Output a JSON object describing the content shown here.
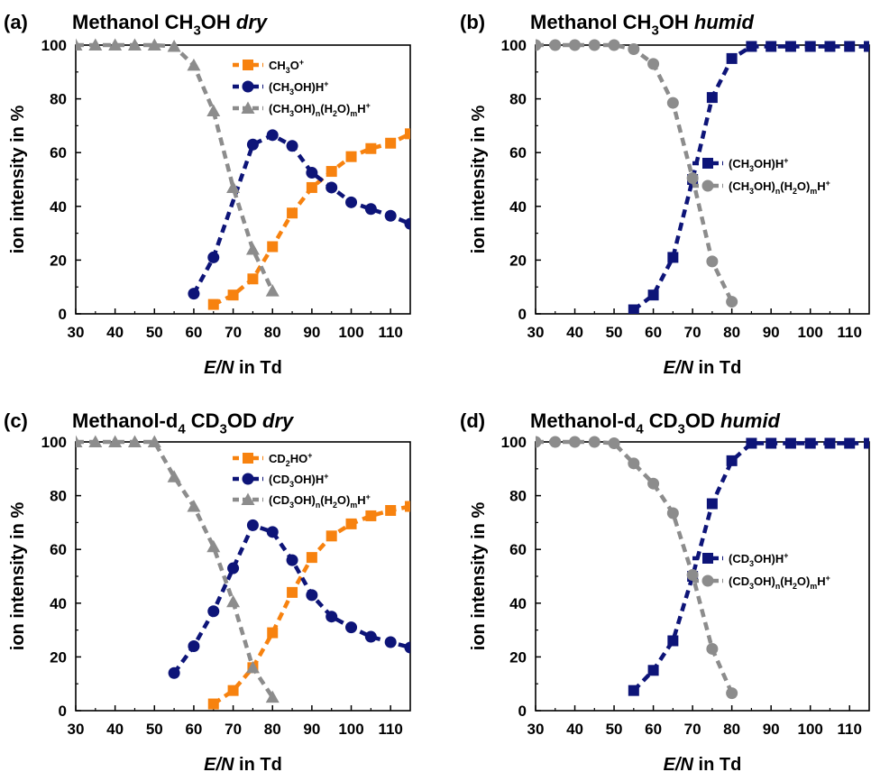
{
  "panels": [
    {
      "label": "(a)",
      "title": [
        {
          "t": "Methanol CH"
        },
        {
          "t": "3",
          "sub": true
        },
        {
          "t": "OH "
        },
        {
          "t": "dry",
          "it": true
        }
      ],
      "xlabel": [
        {
          "t": "E/N",
          "it": true
        },
        {
          "t": " in Td"
        }
      ],
      "ylabel": "ion intensity in %",
      "legend_pos": "top-right"
    },
    {
      "label": "(b)",
      "title": [
        {
          "t": "Methanol CH"
        },
        {
          "t": "3",
          "sub": true
        },
        {
          "t": "OH "
        },
        {
          "t": "humid",
          "it": true
        }
      ],
      "xlabel": [
        {
          "t": "E/N",
          "it": true
        },
        {
          "t": " in Td"
        }
      ],
      "ylabel": "ion intensity in %",
      "legend_pos": "middle-right"
    },
    {
      "label": "(c)",
      "title": [
        {
          "t": "Methanol-d"
        },
        {
          "t": "4",
          "sub": true
        },
        {
          "t": " CD"
        },
        {
          "t": "3",
          "sub": true
        },
        {
          "t": "OD "
        },
        {
          "t": "dry",
          "it": true
        }
      ],
      "xlabel": [
        {
          "t": "E/N",
          "it": true
        },
        {
          "t": " in Td"
        }
      ],
      "ylabel": "ion intensity in %",
      "legend_pos": "top-right"
    },
    {
      "label": "(d)",
      "title": [
        {
          "t": "Methanol-d"
        },
        {
          "t": "4",
          "sub": true
        },
        {
          "t": " CD"
        },
        {
          "t": "3",
          "sub": true
        },
        {
          "t": "OD "
        },
        {
          "t": "humid",
          "it": true
        }
      ],
      "xlabel": [
        {
          "t": "E/N",
          "it": true
        },
        {
          "t": " in Td"
        }
      ],
      "ylabel": "ion intensity in %",
      "legend_pos": "middle-right"
    }
  ],
  "colors": {
    "orange": "#f7820f",
    "navy": "#0d1478",
    "gray": "#8c8c8c"
  },
  "chart_data": [
    {
      "type": "line",
      "xlim": [
        30,
        115
      ],
      "ylim": [
        0,
        100
      ],
      "xticks": [
        30,
        40,
        50,
        60,
        70,
        80,
        90,
        100,
        110
      ],
      "yticks": [
        0,
        20,
        40,
        60,
        80,
        100
      ],
      "series": [
        {
          "name": [
            {
              "t": "CH"
            },
            {
              "t": "3",
              "sub": true
            },
            {
              "t": "O"
            },
            {
              "t": "+",
              "sup": true
            }
          ],
          "color": "orange",
          "marker": "square",
          "x": [
            65,
            70,
            75,
            80,
            85,
            90,
            95,
            100,
            105,
            110,
            115
          ],
          "y": [
            3.5,
            7,
            13,
            25,
            37.5,
            47,
            53,
            58.5,
            61.5,
            63.5,
            67
          ]
        },
        {
          "name": [
            {
              "t": "(CH"
            },
            {
              "t": "3",
              "sub": true
            },
            {
              "t": "OH)H"
            },
            {
              "t": "+",
              "sup": true
            }
          ],
          "color": "navy",
          "marker": "circle",
          "x": [
            60,
            65,
            75,
            80,
            85,
            90,
            95,
            100,
            105,
            110,
            115
          ],
          "y": [
            7.5,
            21,
            63,
            66.5,
            62.5,
            52.5,
            47,
            41.5,
            39,
            36.5,
            33.5
          ]
        },
        {
          "name": [
            {
              "t": "(CH"
            },
            {
              "t": "3",
              "sub": true
            },
            {
              "t": "OH)"
            },
            {
              "t": "n",
              "sub": true
            },
            {
              "t": "(H"
            },
            {
              "t": "2",
              "sub": true
            },
            {
              "t": "O)"
            },
            {
              "t": "m",
              "sub": true
            },
            {
              "t": "H"
            },
            {
              "t": "+",
              "sup": true
            }
          ],
          "color": "gray",
          "marker": "triangle",
          "x": [
            30,
            35,
            40,
            45,
            50,
            55,
            60,
            65,
            70,
            75,
            80
          ],
          "y": [
            100,
            100,
            100,
            100,
            100,
            99.5,
            92.5,
            75.5,
            47,
            24,
            8.5
          ]
        }
      ]
    },
    {
      "type": "line",
      "xlim": [
        30,
        115
      ],
      "ylim": [
        0,
        100
      ],
      "xticks": [
        30,
        40,
        50,
        60,
        70,
        80,
        90,
        100,
        110
      ],
      "yticks": [
        0,
        20,
        40,
        60,
        80,
        100
      ],
      "series": [
        {
          "name": [
            {
              "t": "(CH"
            },
            {
              "t": "3",
              "sub": true
            },
            {
              "t": "OH)H"
            },
            {
              "t": "+",
              "sup": true
            }
          ],
          "color": "navy",
          "marker": "square",
          "x": [
            55,
            60,
            65,
            70,
            75,
            80,
            85,
            90,
            95,
            100,
            105,
            110,
            115
          ],
          "y": [
            1.5,
            7,
            21,
            50,
            80.5,
            95,
            99.5,
            99.5,
            99.5,
            99.5,
            99.5,
            99.5,
            99.5
          ]
        },
        {
          "name": [
            {
              "t": "(CH"
            },
            {
              "t": "3",
              "sub": true
            },
            {
              "t": "OH)"
            },
            {
              "t": "n",
              "sub": true
            },
            {
              "t": "(H"
            },
            {
              "t": "2",
              "sub": true
            },
            {
              "t": "O)"
            },
            {
              "t": "m",
              "sub": true
            },
            {
              "t": "H"
            },
            {
              "t": "+",
              "sup": true
            }
          ],
          "color": "gray",
          "marker": "circle",
          "x": [
            30,
            35,
            40,
            45,
            50,
            55,
            60,
            65,
            70,
            75,
            80
          ],
          "y": [
            100,
            100,
            100,
            100,
            100,
            98.5,
            93,
            78.5,
            50.5,
            19.5,
            4.5
          ]
        }
      ]
    },
    {
      "type": "line",
      "xlim": [
        30,
        115
      ],
      "ylim": [
        0,
        100
      ],
      "xticks": [
        30,
        40,
        50,
        60,
        70,
        80,
        90,
        100,
        110
      ],
      "yticks": [
        0,
        20,
        40,
        60,
        80,
        100
      ],
      "series": [
        {
          "name": [
            {
              "t": "CD"
            },
            {
              "t": "2",
              "sub": true
            },
            {
              "t": "HO"
            },
            {
              "t": "+",
              "sup": true
            }
          ],
          "color": "orange",
          "marker": "square",
          "x": [
            65,
            70,
            75,
            80,
            85,
            90,
            95,
            100,
            105,
            110,
            115
          ],
          "y": [
            2.5,
            7.5,
            16,
            29,
            44,
            57,
            65,
            69.5,
            72.5,
            74.5,
            76
          ]
        },
        {
          "name": [
            {
              "t": "(CD"
            },
            {
              "t": "3",
              "sub": true
            },
            {
              "t": "OH)H"
            },
            {
              "t": "+",
              "sup": true
            }
          ],
          "color": "navy",
          "marker": "circle",
          "x": [
            55,
            60,
            65,
            70,
            75,
            80,
            85,
            90,
            95,
            100,
            105,
            110,
            115
          ],
          "y": [
            14,
            24,
            37,
            53,
            69,
            66.5,
            56,
            43,
            35,
            31,
            27.5,
            25.5,
            23.5
          ]
        },
        {
          "name": [
            {
              "t": "(CD"
            },
            {
              "t": "3",
              "sub": true
            },
            {
              "t": "OH)"
            },
            {
              "t": "n",
              "sub": true
            },
            {
              "t": "(H"
            },
            {
              "t": "2",
              "sub": true
            },
            {
              "t": "O)"
            },
            {
              "t": "m",
              "sub": true
            },
            {
              "t": "H"
            },
            {
              "t": "+",
              "sup": true
            }
          ],
          "color": "gray",
          "marker": "triangle",
          "x": [
            30,
            35,
            40,
            45,
            50,
            55,
            60,
            65,
            70,
            75,
            80
          ],
          "y": [
            100,
            100,
            100,
            100,
            100,
            87,
            76,
            61,
            40.5,
            16,
            5
          ]
        }
      ]
    },
    {
      "type": "line",
      "xlim": [
        30,
        115
      ],
      "ylim": [
        0,
        100
      ],
      "xticks": [
        30,
        40,
        50,
        60,
        70,
        80,
        90,
        100,
        110
      ],
      "yticks": [
        0,
        20,
        40,
        60,
        80,
        100
      ],
      "series": [
        {
          "name": [
            {
              "t": "(CD"
            },
            {
              "t": "3",
              "sub": true
            },
            {
              "t": "OH)H"
            },
            {
              "t": "+",
              "sup": true
            }
          ],
          "color": "navy",
          "marker": "square",
          "x": [
            55,
            60,
            65,
            70,
            75,
            80,
            85,
            90,
            95,
            100,
            105,
            110,
            115
          ],
          "y": [
            7.5,
            15,
            26,
            50,
            77,
            93,
            99.5,
            99.5,
            99.5,
            99.5,
            99.5,
            99.5,
            99.5
          ]
        },
        {
          "name": [
            {
              "t": "(CD"
            },
            {
              "t": "3",
              "sub": true
            },
            {
              "t": "OH)"
            },
            {
              "t": "n",
              "sub": true
            },
            {
              "t": "(H"
            },
            {
              "t": "2",
              "sub": true
            },
            {
              "t": "O)"
            },
            {
              "t": "m",
              "sub": true
            },
            {
              "t": "H"
            },
            {
              "t": "+",
              "sup": true
            }
          ],
          "color": "gray",
          "marker": "circle",
          "x": [
            30,
            35,
            40,
            45,
            50,
            55,
            60,
            65,
            70,
            75,
            80
          ],
          "y": [
            100,
            100,
            100,
            100,
            99.5,
            92,
            84.5,
            73.5,
            50.5,
            23,
            6.5
          ]
        }
      ]
    }
  ]
}
